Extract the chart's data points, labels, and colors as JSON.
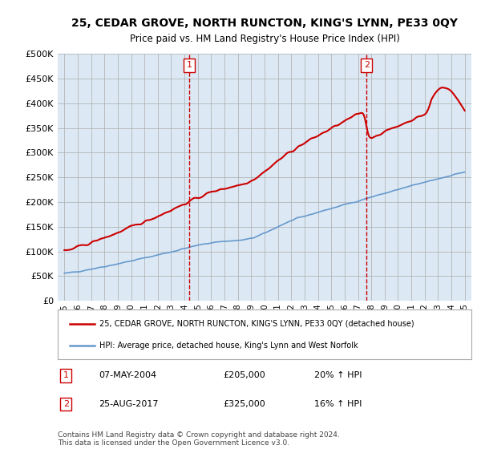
{
  "title": "25, CEDAR GROVE, NORTH RUNCTON, KING'S LYNN, PE33 0QY",
  "subtitle": "Price paid vs. HM Land Registry's House Price Index (HPI)",
  "bg_color": "#dce9f5",
  "plot_bg_color": "#dce9f5",
  "red_color": "#cc0000",
  "blue_color": "#6699cc",
  "marker1_date_label": "1",
  "marker2_date_label": "2",
  "marker1_info": "07-MAY-2004    £205,000    20% ↑ HPI",
  "marker2_info": "25-AUG-2017    £325,000    16% ↑ HPI",
  "legend_line1": "25, CEDAR GROVE, NORTH RUNCTON, KING'S LYNN, PE33 0QY (detached house)",
  "legend_line2": "HPI: Average price, detached house, King's Lynn and West Norfolk",
  "footer": "Contains HM Land Registry data © Crown copyright and database right 2024.\nThis data is licensed under the Open Government Licence v3.0.",
  "ylim": [
    0,
    500000
  ],
  "yticks": [
    0,
    50000,
    100000,
    150000,
    200000,
    250000,
    300000,
    350000,
    400000,
    450000,
    500000
  ],
  "xlabel_start_year": 1995,
  "xlabel_end_year": 2025
}
